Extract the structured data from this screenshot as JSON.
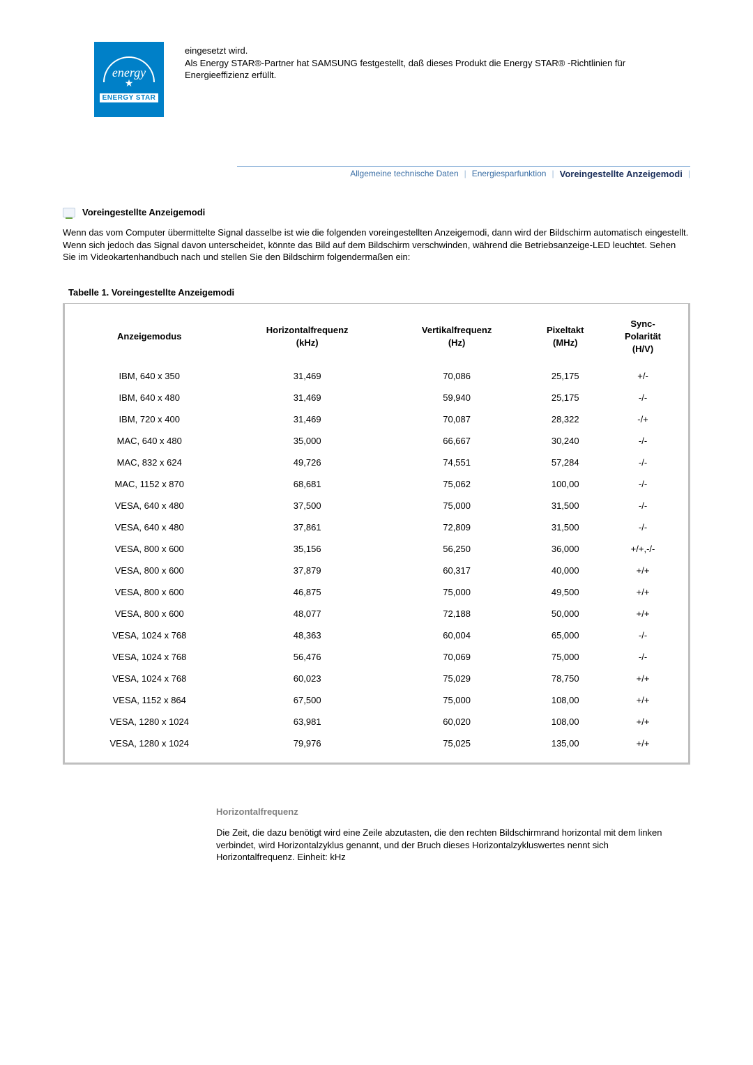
{
  "top_text": {
    "line1": "eingesetzt wird.",
    "line2": "Als Energy STAR®-Partner hat SAMSUNG festgestellt, daß dieses Produkt die Energy STAR® -Richtlinien für Energieeffizienz erfüllt."
  },
  "energy_logo": {
    "script": "energy",
    "band": "ENERGY STAR"
  },
  "tabs": {
    "items": [
      "Allgemeine technische Daten",
      "Energiesparfunktion",
      "Voreingestellte Anzeigemodi"
    ],
    "sep": "|"
  },
  "section": {
    "heading": "Voreingestellte Anzeigemodi",
    "intro": "Wenn das vom Computer übermittelte Signal dasselbe ist wie die folgenden voreingestellten Anzeigemodi, dann wird der Bildschirm automatisch eingestellt. Wenn sich jedoch das Signal davon unterscheidet, könnte das Bild auf dem Bildschirm verschwinden, während die Betriebsanzeige-LED leuchtet. Sehen Sie im Videokartenhandbuch nach und stellen Sie den Bildschirm folgendermaßen ein:"
  },
  "table": {
    "title": "Tabelle 1. Voreingestellte Anzeigemodi",
    "columns": [
      "Anzeigemodus",
      "Horizontalfrequenz\n(kHz)",
      "Vertikalfrequenz\n(Hz)",
      "Pixeltakt\n(MHz)",
      "Sync-\nPolarität\n(H/V)"
    ],
    "rows": [
      [
        "IBM, 640 x 350",
        "31,469",
        "70,086",
        "25,175",
        "+/-"
      ],
      [
        "IBM, 640 x 480",
        "31,469",
        "59,940",
        "25,175",
        "-/-"
      ],
      [
        "IBM, 720 x 400",
        "31,469",
        "70,087",
        "28,322",
        "-/+"
      ],
      [
        "MAC, 640 x 480",
        "35,000",
        "66,667",
        "30,240",
        "-/-"
      ],
      [
        "MAC, 832 x 624",
        "49,726",
        "74,551",
        "57,284",
        "-/-"
      ],
      [
        "MAC, 1152 x 870",
        "68,681",
        "75,062",
        "100,00",
        "-/-"
      ],
      [
        "VESA, 640 x 480",
        "37,500",
        "75,000",
        "31,500",
        "-/-"
      ],
      [
        "VESA, 640 x 480",
        "37,861",
        "72,809",
        "31,500",
        "-/-"
      ],
      [
        "VESA, 800 x 600",
        "35,156",
        "56,250",
        "36,000",
        "+/+,-/-"
      ],
      [
        "VESA, 800 x 600",
        "37,879",
        "60,317",
        "40,000",
        "+/+"
      ],
      [
        "VESA, 800 x 600",
        "46,875",
        "75,000",
        "49,500",
        "+/+"
      ],
      [
        "VESA, 800 x 600",
        "48,077",
        "72,188",
        "50,000",
        "+/+"
      ],
      [
        "VESA, 1024 x 768",
        "48,363",
        "60,004",
        "65,000",
        "-/-"
      ],
      [
        "VESA, 1024 x 768",
        "56,476",
        "70,069",
        "75,000",
        "-/-"
      ],
      [
        "VESA, 1024 x 768",
        "60,023",
        "75,029",
        "78,750",
        "+/+"
      ],
      [
        "VESA, 1152 x 864",
        "67,500",
        "75,000",
        "108,00",
        "+/+"
      ],
      [
        "VESA, 1280 x 1024",
        "63,981",
        "60,020",
        "108,00",
        "+/+"
      ],
      [
        "VESA, 1280 x 1024",
        "79,976",
        "75,025",
        "135,00",
        "+/+"
      ]
    ]
  },
  "bottom": {
    "heading": "Horizontalfrequenz",
    "text": "Die Zeit, die dazu benötigt wird eine Zeile abzutasten, die den rechten Bildschirmrand horizontal mit dem linken verbindet, wird Horizontalzyklus genannt, und der Bruch dieses Horizontalzykluswertes nennt sich Horizontalfrequenz. Einheit: kHz"
  }
}
